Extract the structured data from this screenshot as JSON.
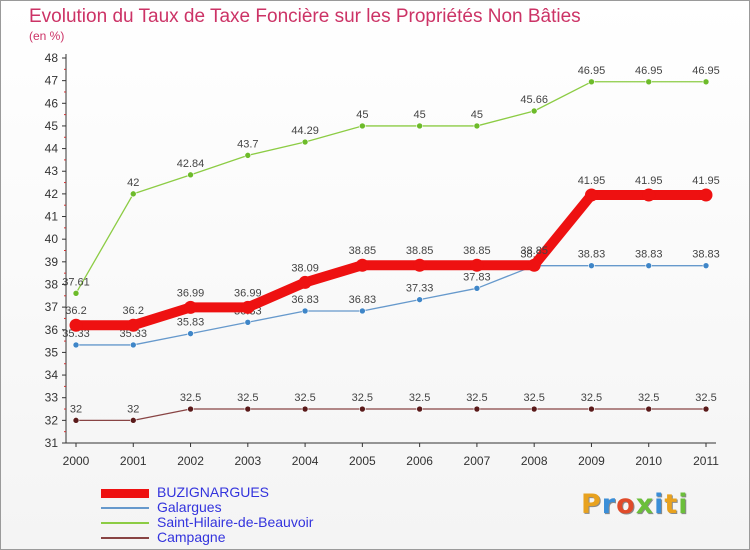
{
  "title": "Evolution du Taux de Taxe Foncière sur les Propriétés Non Bâties",
  "unit_label": "(en %)",
  "logo": {
    "text": "Proxiti",
    "letter_colors": [
      "#e8a21f",
      "#3a8ed8",
      "#e04b2a",
      "#6bbf3a",
      "#3a8ed8",
      "#e8a21f",
      "#6bbf3a"
    ]
  },
  "chart_data": {
    "type": "line",
    "x": [
      "2000",
      "2001",
      "2002",
      "2003",
      "2004",
      "2005",
      "2006",
      "2007",
      "2008",
      "2009",
      "2010",
      "2011"
    ],
    "ylim": [
      31,
      48
    ],
    "yticks": [
      31,
      32,
      33,
      34,
      35,
      36,
      37,
      38,
      39,
      40,
      41,
      42,
      43,
      44,
      45,
      46,
      47,
      48
    ],
    "grid": false,
    "legend_position": "bottom-left",
    "series": [
      {
        "name": "Saint-Hilaire-de-Beauvoir",
        "color": "#8ccc44",
        "marker": "#6dbb2a",
        "values": [
          37.61,
          42,
          42.84,
          43.7,
          44.29,
          45,
          45,
          45,
          45.66,
          46.95,
          46.95,
          46.95
        ],
        "labels": [
          "37.61",
          "42",
          "42.84",
          "43.7",
          "44.29",
          "45",
          "45",
          "45",
          "45.66",
          "46.95",
          "46.95",
          "46.95"
        ]
      },
      {
        "name": "Galargues",
        "color": "#6699cc",
        "marker": "#3f86c8",
        "values": [
          35.33,
          35.33,
          35.83,
          36.33,
          36.83,
          36.83,
          37.33,
          37.83,
          38.83,
          38.83,
          38.83,
          38.83
        ],
        "labels": [
          "35.33",
          "35.33",
          "35.83",
          "36.33",
          "36.83",
          "36.83",
          "37.33",
          "37.83",
          "38.83",
          "38.83",
          "38.83",
          "38.83"
        ]
      },
      {
        "name": "Campagne",
        "color": "#884444",
        "marker": "#5a1a1a",
        "values": [
          32,
          32,
          32.5,
          32.5,
          32.5,
          32.5,
          32.5,
          32.5,
          32.5,
          32.5,
          32.5,
          32.5
        ],
        "labels": [
          "32",
          "32",
          "32.5",
          "32.5",
          "32.5",
          "32.5",
          "32.5",
          "32.5",
          "32.5",
          "32.5",
          "32.5",
          "32.5"
        ]
      },
      {
        "name": "BUZIGNARGUES",
        "color": "#ee1111",
        "marker": "#ee1111",
        "values": [
          36.2,
          36.2,
          36.99,
          36.99,
          38.09,
          38.85,
          38.85,
          38.85,
          38.85,
          41.95,
          41.95,
          41.95
        ],
        "labels": [
          "36.2",
          "36.2",
          "36.99",
          "36.99",
          "38.09",
          "38.85",
          "38.85",
          "38.85",
          "38.85",
          "41.95",
          "41.95",
          "41.95"
        ]
      }
    ],
    "legend": [
      "BUZIGNARGUES",
      "Galargues",
      "Saint-Hilaire-de-Beauvoir",
      "Campagne"
    ]
  }
}
